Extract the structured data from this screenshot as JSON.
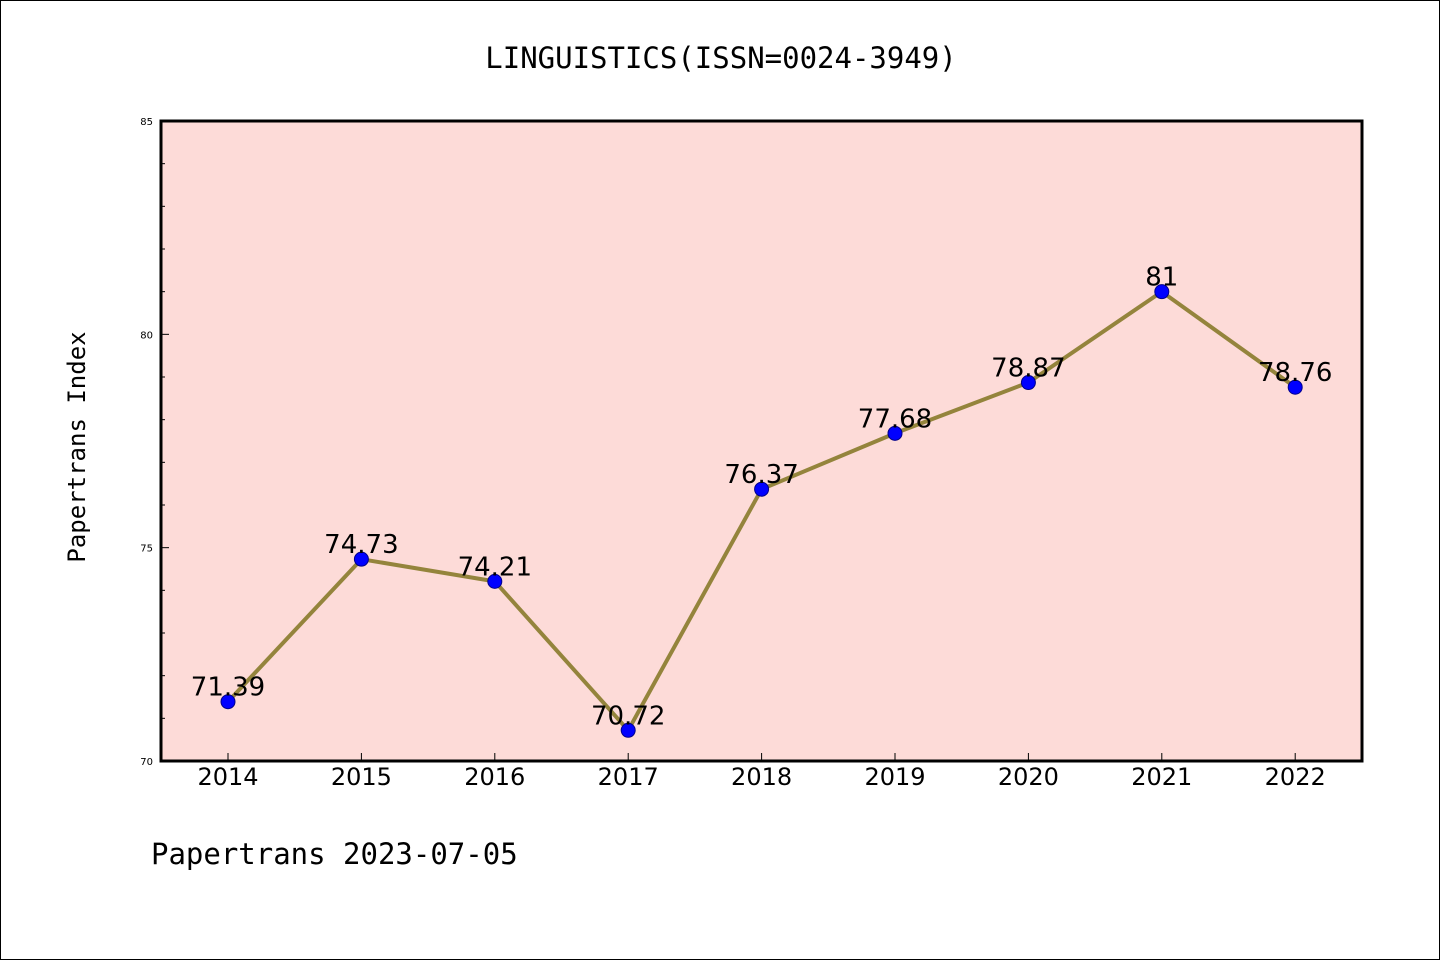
{
  "chart_data": {
    "type": "line",
    "title": "LINGUISTICS(ISSN=0024-3949)",
    "ylabel": "Papertrans Index",
    "xlabel": "",
    "footer": "Papertrans 2023-07-05",
    "categories": [
      "2014",
      "2015",
      "2016",
      "2017",
      "2018",
      "2019",
      "2020",
      "2021",
      "2022"
    ],
    "series": [
      {
        "values": [
          71.39,
          74.73,
          74.21,
          70.72,
          76.37,
          77.68,
          78.87,
          81,
          78.76
        ],
        "labels": [
          "71.39",
          "74.73",
          "74.21",
          "70.72",
          "76.37",
          "77.68",
          "78.87",
          "81",
          "78.76"
        ]
      }
    ],
    "ylim": [
      70,
      85
    ],
    "yticks": [
      70,
      75,
      80,
      85
    ],
    "ytick_labels": [
      "70",
      "75",
      "80",
      "85"
    ],
    "y_minor_step": 1,
    "grid": false,
    "colors": {
      "plot_background": "#fddbd8",
      "line": "#94843c",
      "marker": "#0000ff",
      "marker_edge": "#00008b",
      "axes": "#000000"
    }
  }
}
